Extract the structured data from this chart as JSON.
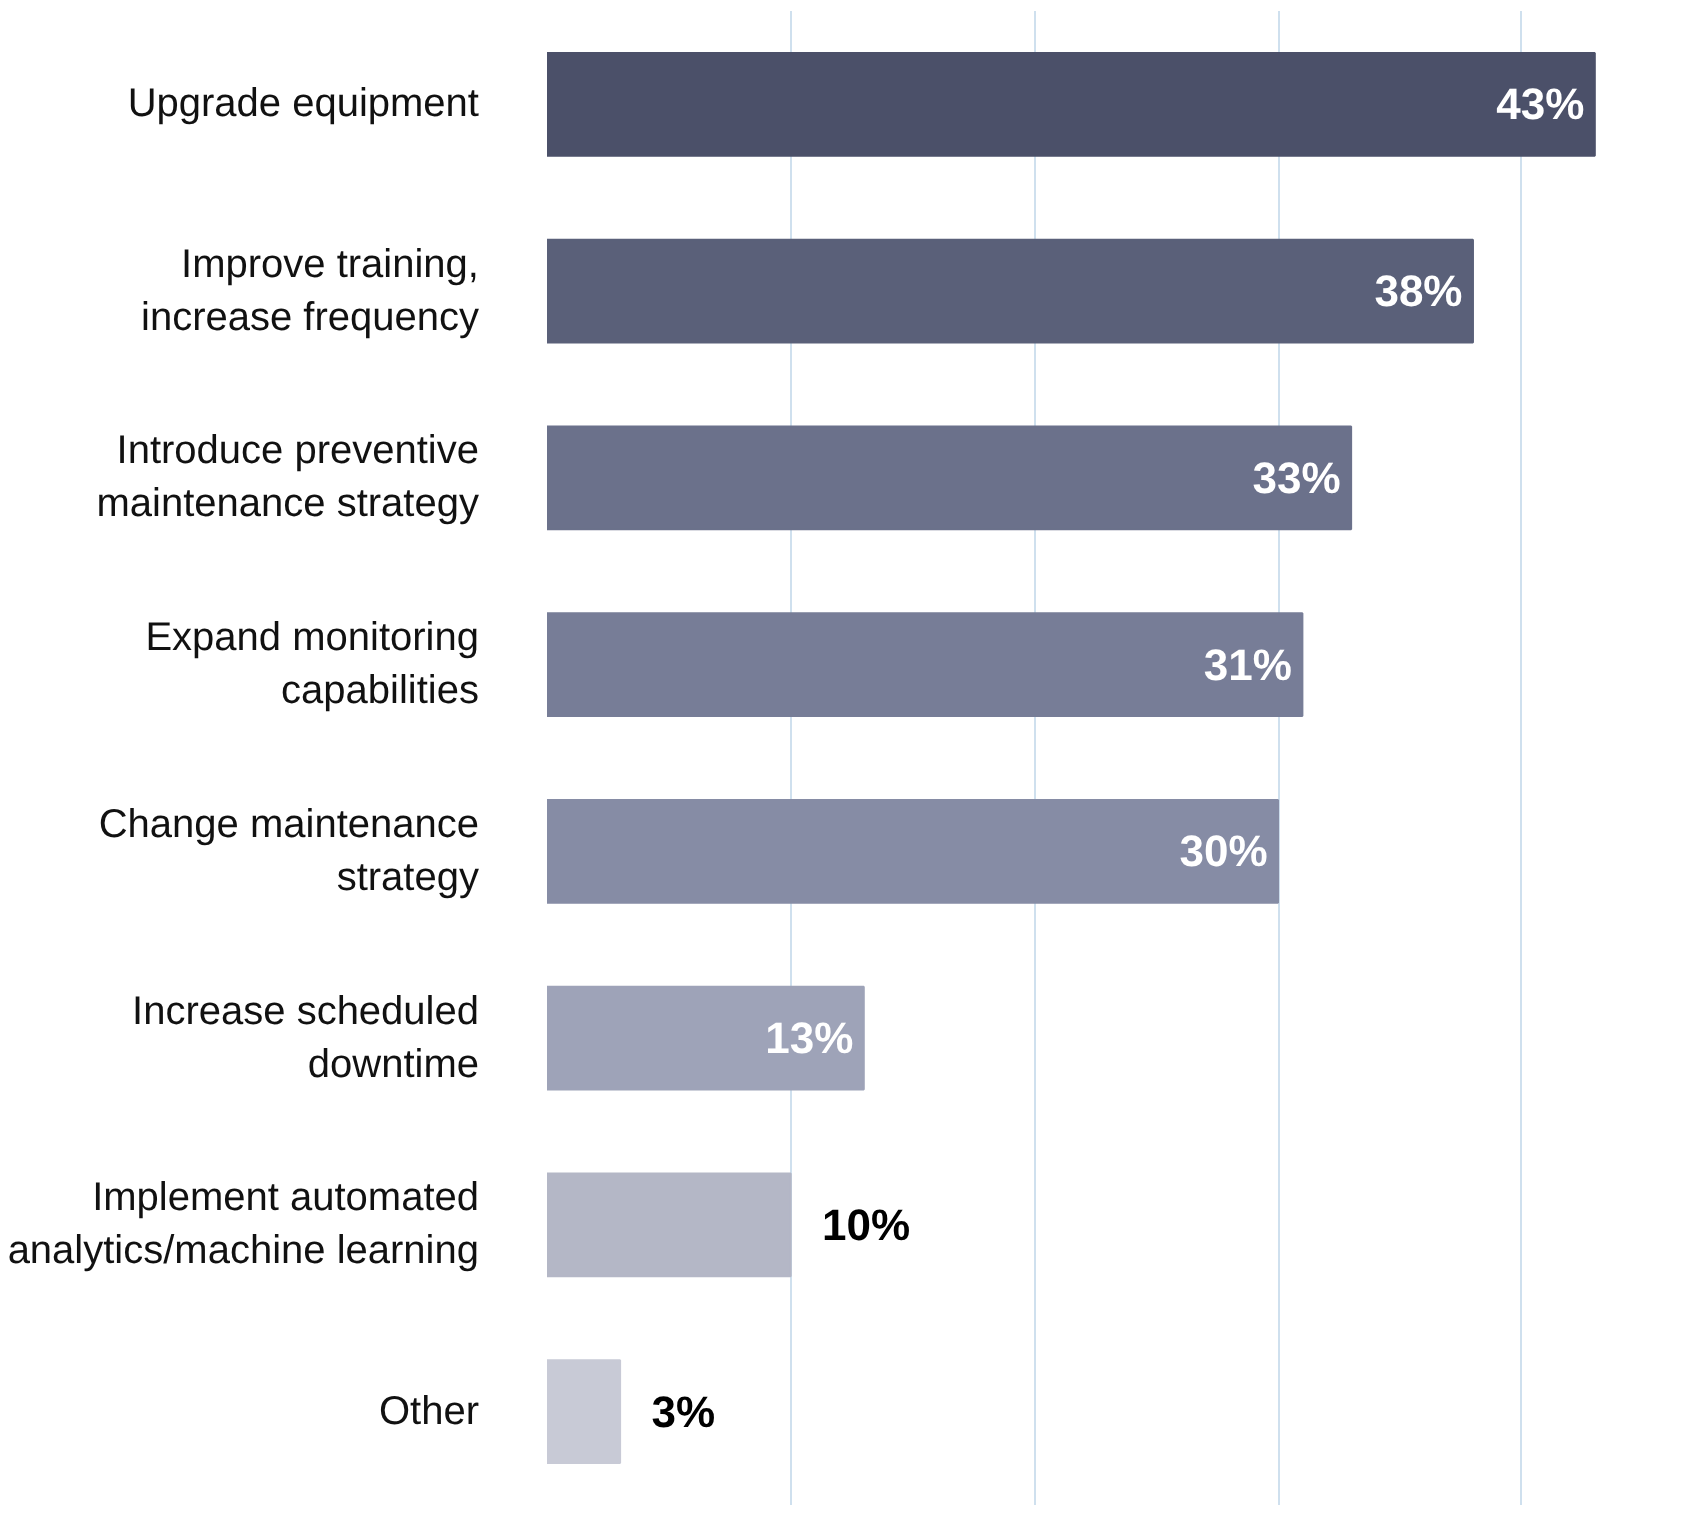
{
  "chart_data": {
    "type": "bar",
    "orientation": "horizontal",
    "categories": [
      "Upgrade equipment",
      "Improve training,\nincrease frequency",
      "Introduce preventive\nmaintenance strategy",
      "Expand monitoring\ncapabilities",
      "Change maintenance\nstrategy",
      "Increase scheduled\ndowntime",
      "Implement automated\nanalytics/machine learning",
      "Other"
    ],
    "values": [
      43,
      38,
      33,
      31,
      30,
      13,
      10,
      3
    ],
    "colors": [
      "#4b5069",
      "#5a6079",
      "#6b718b",
      "#777d97",
      "#868ca5",
      "#9ea3b8",
      "#b4b7c6",
      "#c8cad6"
    ],
    "value_labels": [
      "43%",
      "38%",
      "33%",
      "31%",
      "30%",
      "13%",
      "10%",
      "3%"
    ],
    "grid": "x",
    "tick_labels": "y"
  }
}
